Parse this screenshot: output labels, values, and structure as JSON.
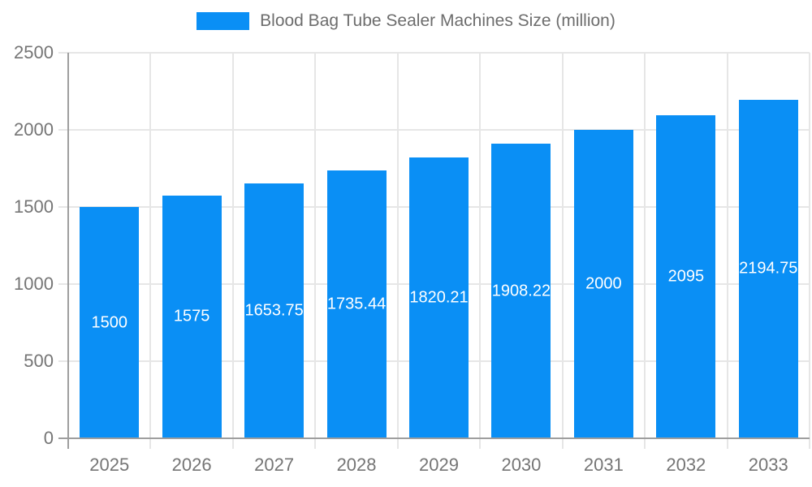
{
  "legend": {
    "label": "Blood Bag Tube Sealer Machines Size (million)"
  },
  "colors": {
    "bar": "#0a8ff5",
    "grid": "#e6e6e6",
    "axis": "#9e9e9e",
    "tick_label": "#757575",
    "value_label": "#ffffff",
    "background": "#ffffff"
  },
  "chart_data": {
    "type": "bar",
    "title": "Blood Bag Tube Sealer Machines Size (million)",
    "categories": [
      "2025",
      "2026",
      "2027",
      "2028",
      "2029",
      "2030",
      "2031",
      "2032",
      "2033"
    ],
    "series": [
      {
        "name": "Blood Bag Tube Sealer Machines Size (million)",
        "values": [
          1500,
          1575,
          1653.75,
          1735.44,
          1820.21,
          1908.22,
          2000,
          2095,
          2194.75
        ]
      }
    ],
    "value_labels": [
      "1500",
      "1575",
      "1653.75",
      "1735.44",
      "1820.21",
      "1908.22",
      "2000",
      "2095",
      "2194.75"
    ],
    "xlabel": "",
    "ylabel": "",
    "ylim": [
      0,
      2500
    ],
    "yticks": [
      0,
      500,
      1000,
      1500,
      2000,
      2500
    ],
    "grid": true,
    "legend_position": "top"
  }
}
